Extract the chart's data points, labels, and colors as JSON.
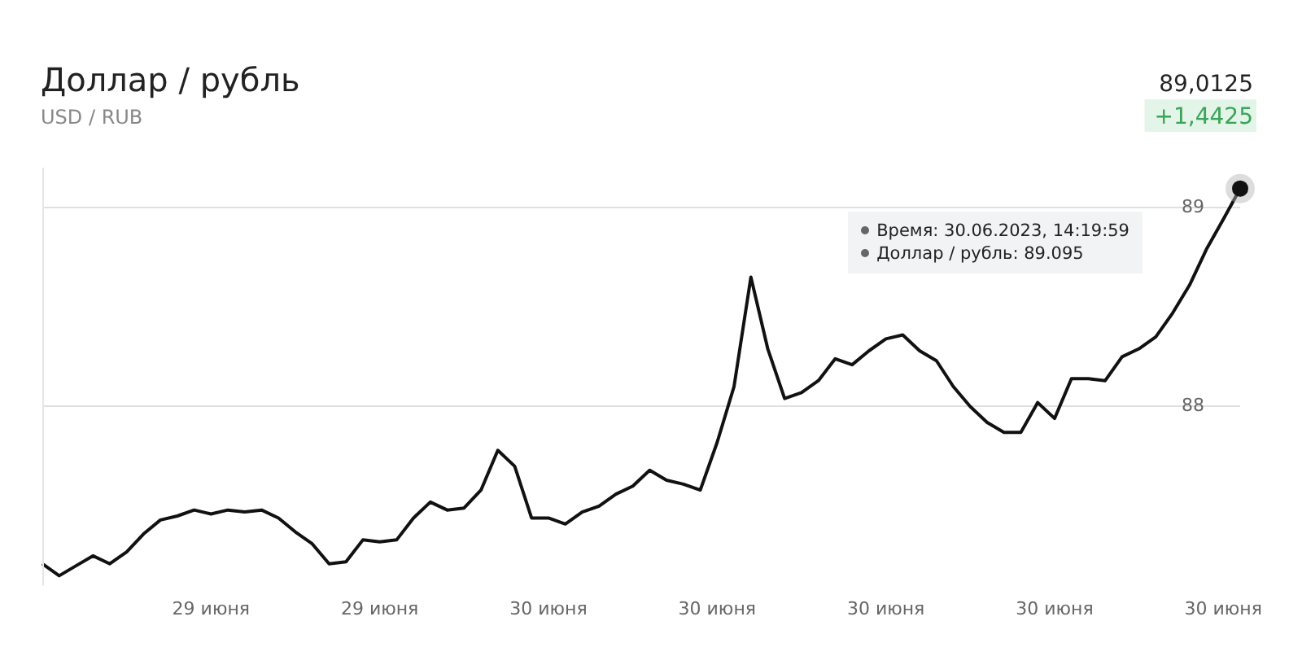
{
  "chart_data": {
    "type": "line",
    "title": "Доллар / рубль",
    "subtitle": "USD / RUB",
    "categories": [
      null,
      null,
      null,
      null,
      null,
      null,
      null,
      null,
      null,
      null,
      "29 июня",
      null,
      null,
      null,
      null,
      null,
      null,
      null,
      null,
      null,
      "29 июня",
      null,
      null,
      null,
      null,
      null,
      null,
      null,
      null,
      null,
      "30 июня",
      null,
      null,
      null,
      null,
      null,
      null,
      null,
      null,
      null,
      "30 июня",
      null,
      null,
      null,
      null,
      null,
      null,
      null,
      null,
      null,
      "30 июня",
      null,
      null,
      null,
      null,
      null,
      null,
      null,
      null,
      null,
      "30 июня",
      null,
      null,
      null,
      null,
      null,
      null,
      null,
      null,
      null,
      "30 июня",
      null
    ],
    "series": [
      {
        "color": "#111111",
        "values": [
          87.21,
          87.15,
          87.2,
          87.25,
          87.21,
          87.27,
          87.36,
          87.43,
          87.45,
          87.48,
          87.46,
          87.48,
          87.47,
          87.48,
          87.44,
          87.37,
          87.31,
          87.21,
          87.22,
          87.33,
          87.32,
          87.33,
          87.44,
          87.52,
          87.48,
          87.49,
          87.58,
          87.78,
          87.7,
          87.44,
          87.44,
          87.41,
          87.47,
          87.5,
          87.56,
          87.6,
          87.68,
          87.63,
          87.61,
          87.58,
          87.82,
          88.1,
          88.65,
          88.29,
          88.04,
          88.07,
          88.13,
          88.24,
          88.21,
          88.28,
          88.34,
          88.36,
          88.28,
          88.23,
          88.1,
          88.0,
          87.92,
          87.87,
          87.87,
          88.02,
          87.94,
          88.14,
          88.14,
          88.13,
          88.25,
          88.29,
          88.35,
          88.47,
          88.61,
          88.79,
          88.94,
          89.095
        ]
      }
    ],
    "ylim": [
      87.1,
      89.2
    ],
    "yticks": [
      88,
      89
    ],
    "grid": "y",
    "legend": false,
    "marker": "none",
    "line_style": "solid",
    "annotations": [
      "89,0125",
      "+1,4425",
      "Время: 30.06.2023, 14:19:59",
      "Доллар / рубль: 89.095"
    ]
  }
}
